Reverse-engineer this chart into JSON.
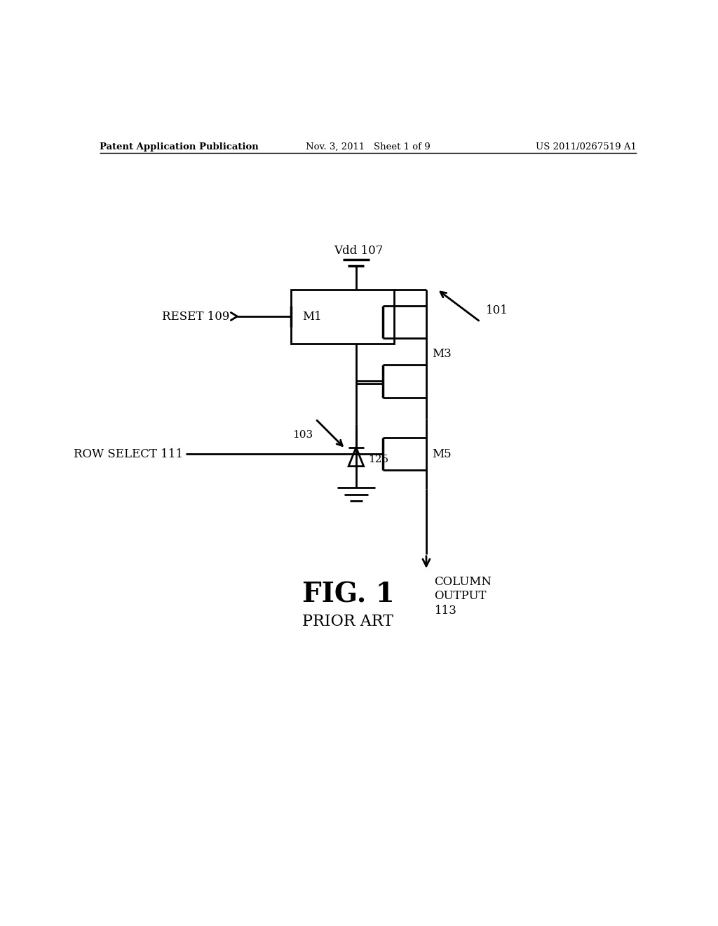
{
  "bg_color": "#ffffff",
  "line_color": "#000000",
  "header_left": "Patent Application Publication",
  "header_center": "Nov. 3, 2011   Sheet 1 of 9",
  "header_right": "US 2011/0267519 A1",
  "fig_label": "FIG. 1",
  "fig_sublabel": "PRIOR ART",
  "vdd_label": "Vdd 107",
  "reset_label": "RESET 109",
  "row_select_label": "ROW SELECT 111",
  "column_output_label": "COLUMN\nOUTPUT\n113",
  "m1_label": "M1",
  "m3_label": "M3",
  "m5_label": "M5",
  "label_103": "103",
  "label_125": "125",
  "label_101": "101"
}
